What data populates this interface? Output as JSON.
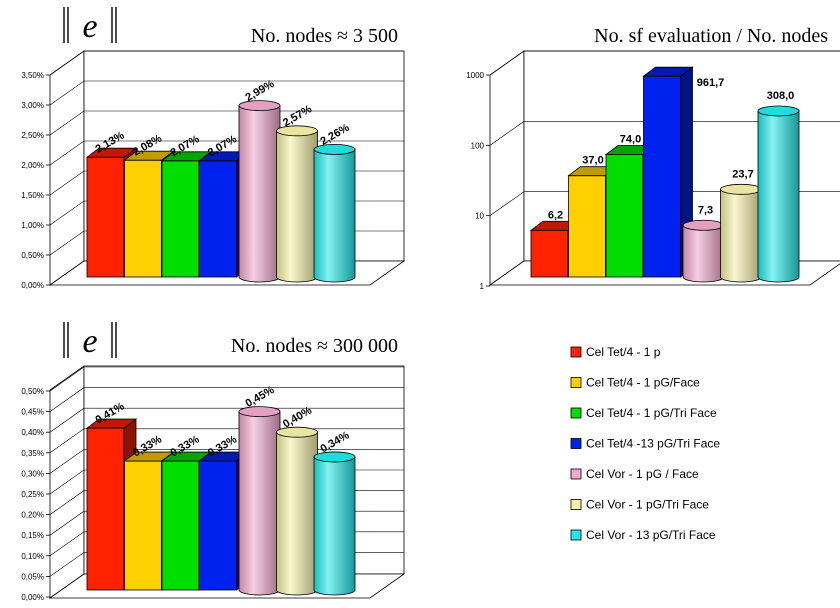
{
  "colors": [
    "#ff2200",
    "#ffd000",
    "#00dd00",
    "#0022ee",
    "#f0a8cc",
    "#f5f0a8",
    "#22e8e8"
  ],
  "legend": [
    "Cel Tet/4 - 1 p",
    "Cel Tet/4 - 1 pG/Face",
    "Cel Tet/4 - 1 pG/Tri Face",
    "Cel Tet/4 -13 pG/Tri Face",
    "Cel Vor - 1 pG / Face",
    "Cel Vor - 1 pG/Tri Face",
    "Cel Vor - 13 pG/Tri Face"
  ],
  "chart_data": [
    {
      "id": "c1",
      "type": "bar",
      "norm_label": "e",
      "title": "No. nodes ≈ 3 500",
      "scale": "linear",
      "ylim": [
        0,
        3.5
      ],
      "ticks": [
        "0,00%",
        "0,50%",
        "1,00%",
        "1,50%",
        "2,00%",
        "2,50%",
        "3,00%",
        "3,50%"
      ],
      "values": [
        2.13,
        2.08,
        2.07,
        2.07,
        2.99,
        2.57,
        2.26
      ],
      "labels": [
        "2,13%",
        "2,08%",
        "2,07%",
        "2,07%",
        "2,99%",
        "2,57%",
        "2,26%"
      ]
    },
    {
      "id": "c2",
      "type": "bar",
      "norm_label": "",
      "title": "No. sf evaluation / No. nodes",
      "scale": "log",
      "ylim": [
        1,
        1000
      ],
      "ticks": [
        "1",
        "10",
        "100",
        "1000"
      ],
      "values": [
        6.2,
        37.0,
        74.0,
        961.7,
        7.3,
        23.7,
        308.0
      ],
      "labels": [
        "6,2",
        "37,0",
        "74,0",
        "961,7",
        "7,3",
        "23,7",
        "308,0"
      ]
    },
    {
      "id": "c3",
      "type": "bar",
      "norm_label": "e",
      "title": "No. nodes ≈ 300 000",
      "scale": "linear",
      "ylim": [
        0,
        0.5
      ],
      "ticks": [
        "0,00%",
        "0,05%",
        "0,10%",
        "0,15%",
        "0,20%",
        "0,25%",
        "0,30%",
        "0,35%",
        "0,40%",
        "0,45%",
        "0,50%"
      ],
      "values": [
        0.41,
        0.33,
        0.33,
        0.33,
        0.45,
        0.4,
        0.34
      ],
      "labels": [
        "0,41%",
        "0,33%",
        "0,33%",
        "0,33%",
        "0,45%",
        "0,40%",
        "0,34%"
      ]
    }
  ]
}
